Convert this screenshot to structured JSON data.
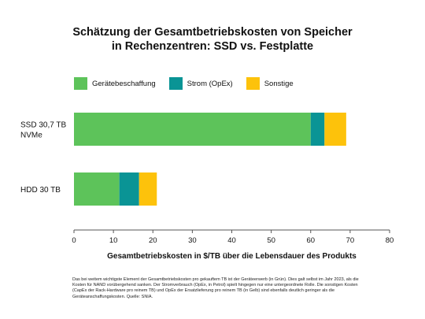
{
  "chart_data": {
    "type": "bar",
    "orientation": "horizontal",
    "stacked": true,
    "title_lines": [
      "Schätzung der Gesamtbetriebskosten von Speicher",
      "in Rechenzentren: SSD vs. Festplatte"
    ],
    "xlabel": "Gesamtbetriebskosten in $/TB über die Lebensdauer des Produkts",
    "xlim": [
      0,
      80
    ],
    "xticks": [
      "0",
      "10",
      "20",
      "30",
      "40",
      "50",
      "60",
      "70",
      "80"
    ],
    "categories": [
      [
        "SSD 30,7 TB",
        "NVMe"
      ],
      [
        "HDD 30 TB"
      ]
    ],
    "series": [
      {
        "name": "Gerätebeschaffung",
        "color": "#5DC35A",
        "values": [
          60,
          11.5
        ]
      },
      {
        "name": "Strom (OpEx)",
        "color": "#0A9495",
        "values": [
          3.5,
          5
        ]
      },
      {
        "name": "Sonstige",
        "color": "#FDC20B",
        "values": [
          5.5,
          4.5
        ]
      }
    ],
    "legend_position": "top-left",
    "grid": false
  },
  "footnote": "Das bei weitem wichtigste Element der Gesamtbetriebskosten pro gekauftem TB ist der Geräteerwerb (in Grün). Dies galt selbst im Jahr 2023, als die Kosten für NAND vorübergehend sanken. Der Stromverbrauch (OpEx, in Petrol) spielt hingegen nur eine untergeordnete Rolle. Die sonstigen Kosten (CapEx der Rack-Hardware pro reinem TB) und OpEx der Ersatzlieferung pro reinem TB (in Gelb) sind ebenfalls deutlich geringer als die Geräteanschaffungskosten. Quelle: SNIA."
}
